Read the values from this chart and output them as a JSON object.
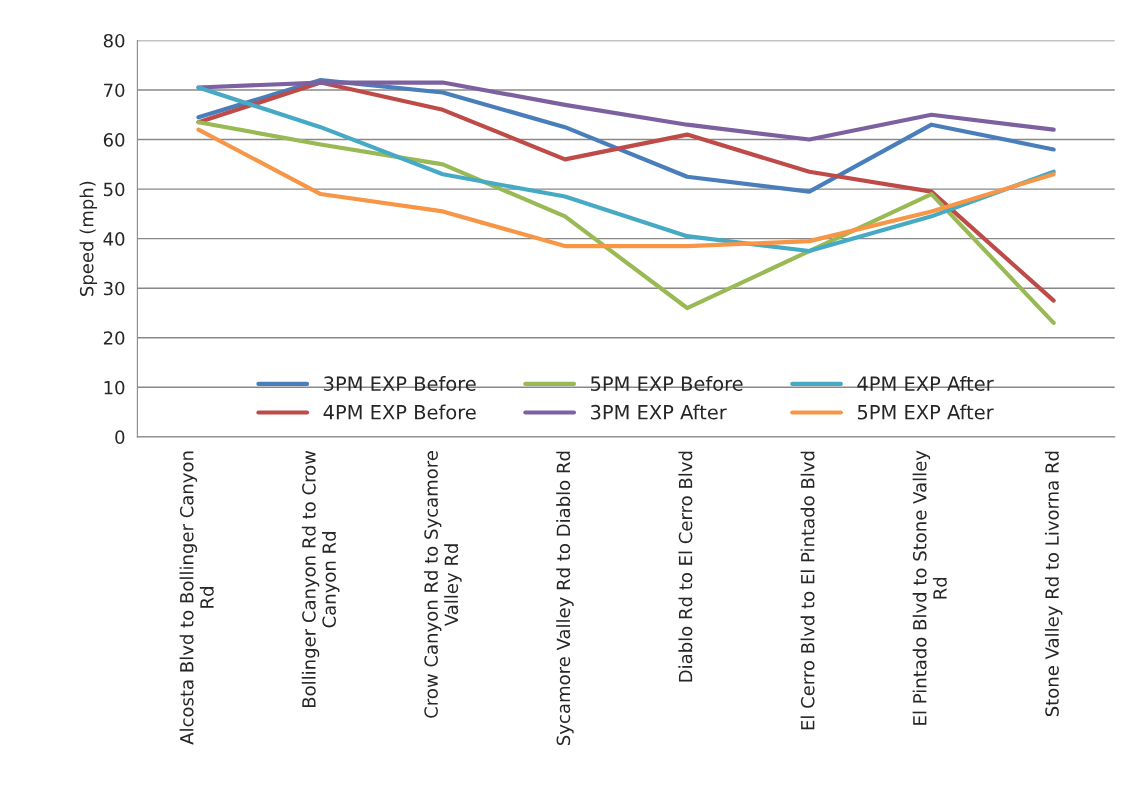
{
  "chart_data": {
    "type": "line",
    "ylabel": "Speed (mph)",
    "categories": [
      "Alcosta Blvd to Bollinger Canyon\nRd",
      "Bollinger Canyon Rd to Crow\nCanyon Rd",
      "Crow Canyon Rd to Sycamore\nValley Rd",
      "Sycamore Valley Rd to Diablo Rd",
      "Diablo Rd to El Cerro Blvd",
      "El Cerro Blvd to El Pintado Blvd",
      "El Pintado Blvd to Stone Valley\nRd",
      "Stone Valley Rd to Livorna Rd"
    ],
    "series": [
      {
        "name": "3PM EXP Before",
        "color": "#4a7ebb",
        "values": [
          64.5,
          72,
          69.5,
          62.5,
          52.5,
          49.5,
          63,
          58
        ]
      },
      {
        "name": "4PM EXP Before",
        "color": "#be4b48",
        "values": [
          63.5,
          71.5,
          66,
          56,
          61,
          53.5,
          49.5,
          27.5
        ]
      },
      {
        "name": "5PM EXP Before",
        "color": "#98b954",
        "values": [
          63.5,
          59,
          55,
          44.5,
          26,
          37.5,
          49,
          23
        ]
      },
      {
        "name": "3PM EXP After",
        "color": "#7d60a0",
        "values": [
          70.5,
          71.5,
          71.5,
          67,
          63,
          60,
          65,
          62
        ]
      },
      {
        "name": "4PM EXP After",
        "color": "#46aac5",
        "values": [
          70.5,
          62.5,
          53,
          48.5,
          40.5,
          37.5,
          44.5,
          53.5
        ]
      },
      {
        "name": "5PM EXP After",
        "color": "#f79646",
        "values": [
          62,
          49,
          45.5,
          38.5,
          38.5,
          39.5,
          45.5,
          53
        ]
      }
    ],
    "ylim": [
      0,
      80
    ],
    "yticks": [
      0,
      10,
      20,
      30,
      40,
      50,
      60,
      70,
      80
    ],
    "grid": "y",
    "legend": "bottom",
    "marker": "none",
    "line_style": "solid"
  }
}
